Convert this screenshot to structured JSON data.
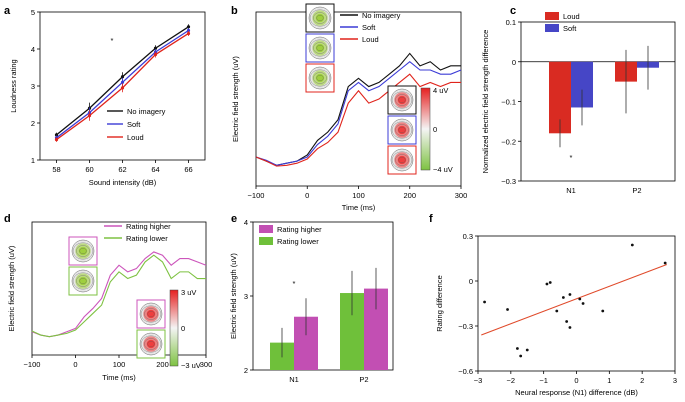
{
  "colors": {
    "black": "#111111",
    "blue": "#3b3bd6",
    "red": "#e0241c",
    "magenta": "#cc55bb",
    "green": "#7ec242",
    "bar_red": "#d92b22",
    "bar_blue": "#4646c6",
    "bar_magenta": "#c24fb3",
    "bar_green": "#6fc03a",
    "fit_line": "#e04a2a"
  },
  "chart_data": [
    {
      "panel": "a",
      "type": "line",
      "xlabel": "Sound intensity (dB)",
      "ylabel": "Loudness rating",
      "x": [
        58,
        60,
        62,
        64,
        66
      ],
      "xlim": [
        57,
        67
      ],
      "ylim": [
        1,
        5
      ],
      "yticks": [
        "1",
        "2",
        "3",
        "4",
        "5"
      ],
      "xticks": [
        "58",
        "60",
        "62",
        "64",
        "66"
      ],
      "annotation": "*",
      "series": [
        {
          "name": "No imagery",
          "color_key": "black",
          "values": [
            1.68,
            2.4,
            3.25,
            4.02,
            4.6
          ],
          "errors": [
            0.06,
            0.15,
            0.12,
            0.08,
            0.07
          ]
        },
        {
          "name": "Soft",
          "color_key": "blue",
          "values": [
            1.6,
            2.28,
            3.1,
            3.92,
            4.5
          ],
          "errors": [
            0.06,
            0.14,
            0.12,
            0.08,
            0.07
          ]
        },
        {
          "name": "Loud",
          "color_key": "red",
          "values": [
            1.55,
            2.2,
            2.95,
            3.85,
            4.42
          ],
          "errors": [
            0.06,
            0.14,
            0.12,
            0.08,
            0.07
          ]
        }
      ]
    },
    {
      "panel": "b",
      "type": "line",
      "xlabel": "Time (ms)",
      "ylabel": "Electric field strength (uV)",
      "x": [
        -100,
        -80,
        -60,
        -40,
        -20,
        0,
        20,
        40,
        60,
        80,
        100,
        120,
        140,
        160,
        180,
        200,
        220,
        240,
        260,
        280,
        300
      ],
      "xlim": [
        -100,
        300
      ],
      "xticks": [
        "−100",
        "0",
        "100",
        "200",
        "300"
      ],
      "series": [
        {
          "name": "No imagery",
          "color_key": "black",
          "values": [
            0.7,
            0.6,
            0.5,
            0.55,
            0.6,
            0.75,
            1.1,
            1.3,
            1.6,
            2.4,
            2.6,
            2.4,
            2.5,
            2.7,
            2.9,
            3.2,
            2.9,
            3.0,
            2.8,
            2.9,
            2.9
          ]
        },
        {
          "name": "Soft",
          "color_key": "blue",
          "values": [
            0.7,
            0.62,
            0.5,
            0.55,
            0.6,
            0.7,
            1.0,
            1.2,
            1.5,
            2.3,
            2.5,
            2.3,
            2.4,
            2.6,
            2.8,
            3.0,
            2.8,
            2.8,
            2.7,
            2.7,
            2.8
          ]
        },
        {
          "name": "Loud",
          "color_key": "red",
          "values": [
            0.7,
            0.6,
            0.48,
            0.5,
            0.55,
            0.65,
            0.9,
            1.05,
            1.3,
            2.0,
            2.3,
            2.0,
            2.1,
            2.3,
            2.5,
            2.7,
            2.4,
            2.5,
            2.4,
            2.5,
            2.5
          ]
        }
      ],
      "colorbar": {
        "max_label": "4 uV",
        "mid_label": "0",
        "min_label": "−4 uV"
      }
    },
    {
      "panel": "c",
      "type": "bar",
      "xlabel": "",
      "ylabel": "Normalized electric field strength difference",
      "categories": [
        "N1",
        "P2"
      ],
      "ylim": [
        -0.3,
        0.1
      ],
      "yticks": [
        "0.1",
        "0",
        "−0.1",
        "−0.2",
        "−0.3"
      ],
      "annotation": "*",
      "series": [
        {
          "name": "Loud",
          "color_key": "bar_red",
          "values": [
            -0.18,
            -0.05
          ],
          "errors": [
            0.035,
            0.08
          ]
        },
        {
          "name": "Soft",
          "color_key": "bar_blue",
          "values": [
            -0.115,
            -0.015
          ],
          "errors": [
            0.045,
            0.055
          ]
        }
      ]
    },
    {
      "panel": "d",
      "type": "line",
      "xlabel": "Time (ms)",
      "ylabel": "Electric field strength (uV)",
      "x": [
        -100,
        -80,
        -60,
        -40,
        -20,
        0,
        20,
        40,
        60,
        80,
        100,
        120,
        140,
        160,
        180,
        200,
        220,
        240,
        260,
        280,
        300
      ],
      "xlim": [
        -100,
        300
      ],
      "xticks": [
        "−100",
        "0",
        "100",
        "200",
        "300"
      ],
      "series": [
        {
          "name": "Rating higher",
          "color_key": "magenta",
          "values": [
            0.7,
            0.6,
            0.55,
            0.6,
            0.7,
            0.8,
            1.15,
            1.4,
            1.7,
            2.4,
            2.7,
            2.5,
            2.6,
            2.9,
            3.1,
            3.0,
            2.7,
            2.9,
            2.9,
            2.8,
            2.7
          ]
        },
        {
          "name": "Rating lower",
          "color_key": "green",
          "values": [
            0.72,
            0.6,
            0.55,
            0.6,
            0.65,
            0.75,
            1.0,
            1.25,
            1.5,
            2.2,
            2.5,
            2.3,
            2.4,
            2.8,
            3.0,
            2.8,
            2.3,
            2.5,
            2.5,
            2.3,
            2.3
          ]
        }
      ],
      "colorbar": {
        "max_label": "3 uV",
        "mid_label": "0",
        "min_label": "−3 uV"
      }
    },
    {
      "panel": "e",
      "type": "bar",
      "xlabel": "",
      "ylabel": "Electric field strength (uV)",
      "categories": [
        "N1",
        "P2"
      ],
      "ylim": [
        2,
        4
      ],
      "yticks": [
        "2",
        "3",
        "4"
      ],
      "annotation": "*",
      "series": [
        {
          "name": "Rating higher",
          "color_key": "bar_magenta",
          "values": [
            2.72,
            3.1
          ],
          "errors": [
            0.25,
            0.28
          ]
        },
        {
          "name": "Rating lower",
          "color_key": "bar_green",
          "values": [
            2.37,
            3.04
          ],
          "errors": [
            0.2,
            0.3
          ]
        }
      ]
    },
    {
      "panel": "f",
      "type": "scatter",
      "xlabel": "Neural response (N1) difference (dB)",
      "ylabel": "Rating difference",
      "xlim": [
        -3,
        3
      ],
      "ylim": [
        -0.6,
        0.3
      ],
      "xticks": [
        "−3",
        "−2",
        "−1",
        "0",
        "1",
        "2",
        "3"
      ],
      "yticks": [
        "0.3",
        "0",
        "−0.3",
        "−0.6"
      ],
      "points": [
        {
          "x": -2.8,
          "y": -0.14
        },
        {
          "x": -2.1,
          "y": -0.19
        },
        {
          "x": -1.8,
          "y": -0.45
        },
        {
          "x": -1.7,
          "y": -0.5
        },
        {
          "x": -1.5,
          "y": -0.46
        },
        {
          "x": -0.9,
          "y": -0.02
        },
        {
          "x": -0.8,
          "y": -0.01
        },
        {
          "x": -0.6,
          "y": -0.2
        },
        {
          "x": -0.4,
          "y": -0.11
        },
        {
          "x": -0.3,
          "y": -0.27
        },
        {
          "x": -0.2,
          "y": -0.31
        },
        {
          "x": -0.2,
          "y": -0.09
        },
        {
          "x": 0.1,
          "y": -0.12
        },
        {
          "x": 0.2,
          "y": -0.15
        },
        {
          "x": 0.8,
          "y": -0.2
        },
        {
          "x": 1.7,
          "y": 0.24
        },
        {
          "x": 2.7,
          "y": 0.12
        }
      ],
      "fit": {
        "x": [
          -2.9,
          2.75
        ],
        "y": [
          -0.36,
          0.11
        ]
      }
    }
  ]
}
